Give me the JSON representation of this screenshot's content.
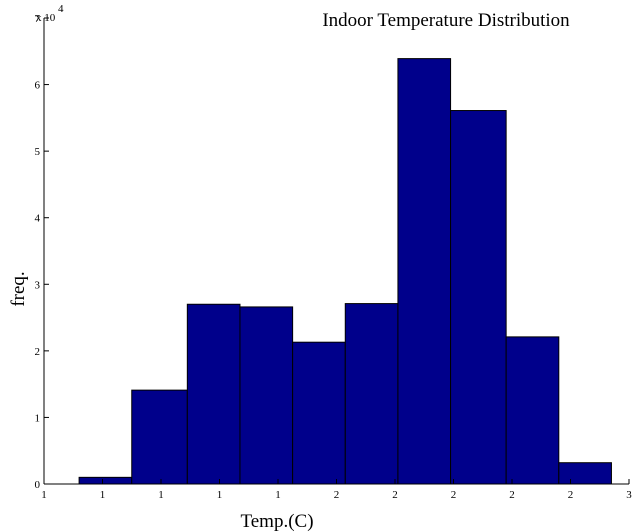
{
  "chart_data": {
    "type": "bar",
    "title": "Indoor Temperature Distribution",
    "xlabel": "Temp.(C)",
    "ylabel": "freq.",
    "y_scale_label": "x 10",
    "y_scale_exponent": "4",
    "xlim": [
      1,
      3
    ],
    "ylim": [
      0,
      7
    ],
    "xticks": [
      {
        "value": 1.0,
        "label": "1"
      },
      {
        "value": 1.2,
        "label": "1"
      },
      {
        "value": 1.4,
        "label": "1"
      },
      {
        "value": 1.6,
        "label": "1"
      },
      {
        "value": 1.8,
        "label": "1"
      },
      {
        "value": 2.0,
        "label": "2"
      },
      {
        "value": 2.2,
        "label": "2"
      },
      {
        "value": 2.4,
        "label": "2"
      },
      {
        "value": 2.6,
        "label": "2"
      },
      {
        "value": 2.8,
        "label": "2"
      },
      {
        "value": 3.0,
        "label": "3"
      }
    ],
    "yticks": [
      {
        "value": 0,
        "label": "0"
      },
      {
        "value": 1,
        "label": "1"
      },
      {
        "value": 2,
        "label": "2"
      },
      {
        "value": 3,
        "label": "3"
      },
      {
        "value": 4,
        "label": "4"
      },
      {
        "value": 5,
        "label": "5"
      },
      {
        "value": 6,
        "label": "6"
      },
      {
        "value": 7,
        "label": "7"
      }
    ],
    "bins": [
      {
        "start": 1.12,
        "end": 1.3,
        "value": 0.1
      },
      {
        "start": 1.3,
        "end": 1.49,
        "value": 1.41
      },
      {
        "start": 1.49,
        "end": 1.67,
        "value": 2.7
      },
      {
        "start": 1.67,
        "end": 1.85,
        "value": 2.66
      },
      {
        "start": 1.85,
        "end": 2.03,
        "value": 2.13
      },
      {
        "start": 2.03,
        "end": 2.21,
        "value": 2.71
      },
      {
        "start": 2.21,
        "end": 2.39,
        "value": 6.39
      },
      {
        "start": 2.39,
        "end": 2.58,
        "value": 5.61
      },
      {
        "start": 2.58,
        "end": 2.76,
        "value": 2.21
      },
      {
        "start": 2.76,
        "end": 2.94,
        "value": 0.32
      }
    ],
    "bar_color": "#00008B",
    "edge_color": "#000000",
    "grid": false,
    "legend": "none"
  }
}
